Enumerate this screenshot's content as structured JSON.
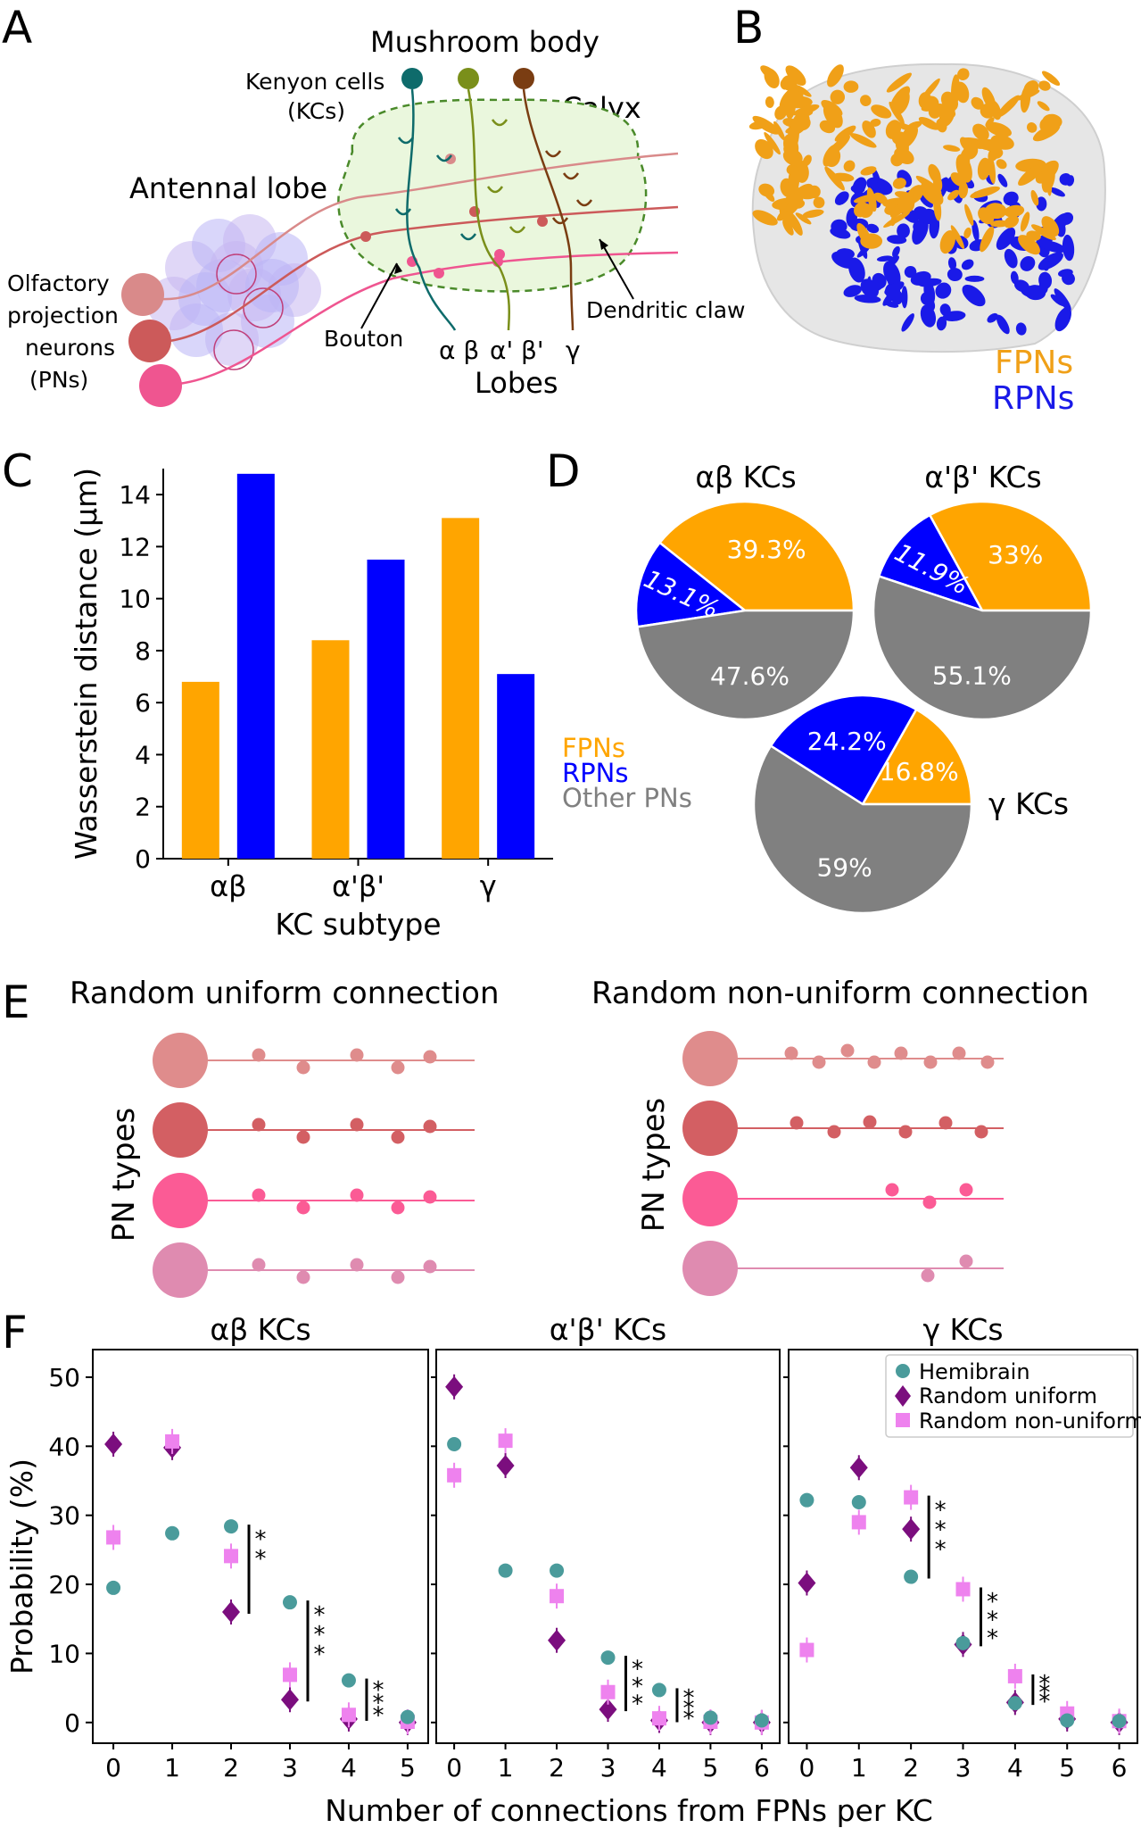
{
  "panels": {
    "A": {
      "letter": "A",
      "title": "Mushroom body",
      "kc_label_1": "Kenyon cells",
      "kc_label_2": "(KCs)",
      "calyx": "Calyx",
      "antennal_lobe": "Antennal lobe",
      "pn_label_1": "Olfactory",
      "pn_label_2": "projection",
      "pn_label_3": "neurons",
      "pn_label_4": "(PNs)",
      "bouton": "Bouton",
      "claw": "Dendritic claw",
      "lobe_ab": "α β",
      "lobe_apbp": "α' β'",
      "lobe_g": "γ",
      "lobes": "Lobes",
      "colors": {
        "kc_ab": "#0e6b6b",
        "kc_apbp": "#7a8f1a",
        "kc_g": "#7a3d12",
        "pn1": "#d98a8a",
        "pn2": "#cc5a5a",
        "pn3": "#ef5590"
      }
    },
    "B": {
      "letter": "B",
      "legend_fpn": "FPNs",
      "legend_rpn": "RPNs",
      "colors": {
        "fpn": "#f0a018",
        "rpn": "#1a1ae8"
      }
    },
    "C": {
      "letter": "C",
      "legend_fpn": "FPNs",
      "legend_rpn": "RPNs",
      "legend_other": "Other PNs"
    },
    "D": {
      "letter": "D",
      "pies": [
        {
          "title": "αβ KCs",
          "fpn": 39.3,
          "rpn": 13.1,
          "other": 47.6,
          "fpn_label": "39.3%",
          "rpn_label": "13.1%",
          "other_label": "47.6%"
        },
        {
          "title": "α'β' KCs",
          "fpn": 33.0,
          "rpn": 11.9,
          "other": 55.1,
          "fpn_label": "33%",
          "rpn_label": "11.9%",
          "other_label": "55.1%"
        },
        {
          "title": "γ KCs",
          "fpn": 16.8,
          "rpn": 24.2,
          "other": 59.0,
          "fpn_label": "16.8%",
          "rpn_label": "24.2%",
          "other_label": "59%"
        }
      ],
      "colors": {
        "fpn": "#ffa500",
        "rpn": "#0000ff",
        "other": "#808080"
      }
    },
    "E": {
      "letter": "E",
      "left_title": "Random uniform connection",
      "right_title": "Random non-uniform connection",
      "ylabel": "PN types",
      "colors": [
        "#df8c8c",
        "#d35f63",
        "#fb5b95",
        "#df8bb0"
      ]
    },
    "F": {
      "letter": "F",
      "ylabel": "Probability (%)",
      "xlabel": "Number of connections from FPNs per KC",
      "legend": [
        "Hemibrain",
        "Random uniform",
        "Random non-uniform"
      ],
      "colors": {
        "hemibrain": "#4a9b9b",
        "uniform": "#7b0e7e",
        "nonuniform": "#ee82ee"
      },
      "subplots": [
        {
          "title": "αβ KCs",
          "x": [
            0,
            1,
            2,
            3,
            4,
            5
          ],
          "hemibrain": [
            19.5,
            27.4,
            28.4,
            17.4,
            6.1,
            0.8
          ],
          "uniform": [
            40.3,
            39.8,
            16.0,
            3.3,
            0.5,
            0.0
          ],
          "nonuniform": [
            26.8,
            40.7,
            24.1,
            6.9,
            1.1,
            0.1
          ],
          "sig": [
            {
              "x": 2,
              "label": "**"
            },
            {
              "x": 3,
              "label": "***"
            },
            {
              "x": 4,
              "label": "***"
            }
          ]
        },
        {
          "title": "α'β' KCs",
          "x": [
            0,
            1,
            2,
            3,
            4,
            5,
            6
          ],
          "hemibrain": [
            40.3,
            22.0,
            22.0,
            9.4,
            4.7,
            0.7,
            0.3
          ],
          "uniform": [
            48.6,
            37.2,
            11.9,
            1.9,
            0.3,
            0.0,
            0.0
          ],
          "nonuniform": [
            35.8,
            40.8,
            18.3,
            4.4,
            0.6,
            0.1,
            0.0
          ],
          "sig": [
            {
              "x": 3,
              "label": "***"
            },
            {
              "x": 4,
              "label": "***"
            }
          ]
        },
        {
          "title": "γ KCs",
          "x": [
            0,
            1,
            2,
            3,
            4,
            5,
            6
          ],
          "hemibrain": [
            32.2,
            31.9,
            21.1,
            11.5,
            2.8,
            0.3,
            0.2
          ],
          "uniform": [
            20.2,
            36.9,
            28.0,
            11.3,
            2.9,
            0.5,
            0.0
          ],
          "nonuniform": [
            10.5,
            29.0,
            32.6,
            19.3,
            6.7,
            1.3,
            0.2
          ],
          "sig": [
            {
              "x": 2,
              "label": "***"
            },
            {
              "x": 3,
              "label": "***"
            },
            {
              "x": 4,
              "label": "***"
            }
          ]
        }
      ]
    }
  },
  "chart_data": [
    {
      "type": "bar",
      "categories": [
        "αβ",
        "α'β'",
        "γ"
      ],
      "series": [
        {
          "name": "FPNs",
          "values": [
            6.8,
            8.4,
            13.1
          ]
        },
        {
          "name": "RPNs",
          "values": [
            14.8,
            11.5,
            7.1
          ]
        }
      ],
      "xlabel": "KC subtype",
      "ylabel": "Wasserstein distance (μm)",
      "ylim": [
        0,
        15
      ],
      "yticks": [
        0,
        2,
        4,
        6,
        8,
        10,
        12,
        14
      ],
      "colors": [
        "#ffa500",
        "#0000ff"
      ]
    }
  ]
}
